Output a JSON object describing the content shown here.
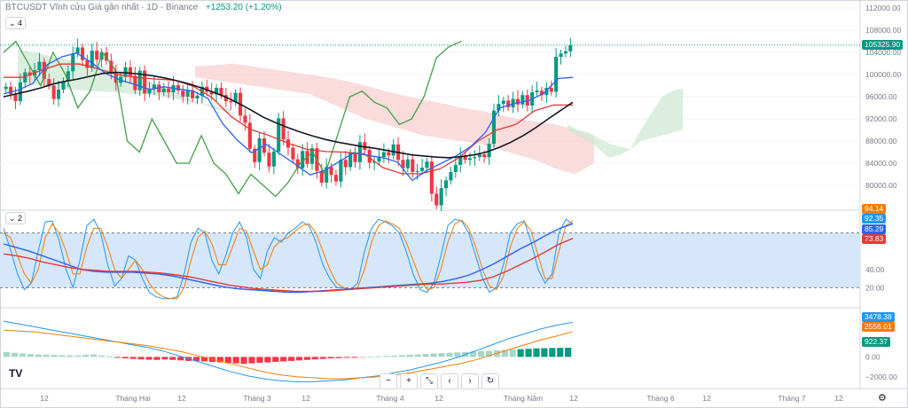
{
  "header": {
    "symbol": "BTCUSDT Vĩnh cửu Giá gần nhất · 1D · Binance",
    "change": "+1253.20 (+1.20%)"
  },
  "panes": {
    "main_tag": "4",
    "stoch_tag": "2"
  },
  "toolbar": {
    "zoom_out": "−",
    "zoom_in": "+",
    "reset": "⤡",
    "prev": "‹",
    "next": "›",
    "refresh": "↻"
  },
  "branding": {
    "logo": "TV"
  },
  "colors": {
    "up": "#089981",
    "down": "#f23645",
    "black_ma": "#131722",
    "blue_line": "#2962ff",
    "red_line": "#e53935",
    "green_lag": "#43a047",
    "cloud_up": "#cfe8d4",
    "cloud_down": "#f8d0d0",
    "stoch_k": "#2196f3",
    "stoch_d": "#f57c00",
    "band": "#d6e6fb",
    "macd_line": "#2196f3",
    "signal_line": "#f57c00"
  },
  "chart_data": [
    {
      "type": "candlestick",
      "name": "price",
      "y_ticks": [
        "112000.00",
        "108000.00",
        "104000.00",
        "100000.00",
        "96000.00",
        "92000.00",
        "88000.00",
        "84000.00",
        "80000.00"
      ],
      "ylim": [
        76000,
        112500
      ],
      "last_price": "105325.90",
      "x_labels": [
        "12",
        "Tháng Hai",
        "12",
        "Tháng 3",
        "12",
        "Tháng 4",
        "12",
        "Tháng Năm",
        "12",
        "Tháng 6",
        "12",
        "Tháng 7",
        "12"
      ],
      "candles_close": [
        97800,
        96500,
        95200,
        98600,
        100400,
        99800,
        100800,
        102300,
        99200,
        98000,
        95600,
        97300,
        98800,
        100600,
        103800,
        104900,
        102600,
        101200,
        104300,
        102700,
        104000,
        102500,
        100200,
        98500,
        99600,
        101300,
        99800,
        97200,
        100700,
        96600,
        97400,
        98200,
        96800,
        97500,
        96800,
        98100,
        97100,
        96000,
        97200,
        95700,
        96200,
        97800,
        96900,
        96400,
        97600,
        96300,
        95200,
        95000,
        96700,
        92600,
        91300,
        86600,
        84200,
        88500,
        85900,
        83400,
        86100,
        92100,
        88300,
        86800,
        84700,
        83100,
        86200,
        83900,
        86700,
        82600,
        80500,
        83300,
        81900,
        80700,
        84600,
        83300,
        85900,
        84200,
        87800,
        86400,
        84100,
        84300,
        85100,
        86000,
        85400,
        87400,
        84600,
        83100,
        84700,
        82400,
        82600,
        83200,
        84300,
        78500,
        76400,
        79500,
        80900,
        82400,
        83700,
        85300,
        84600,
        84900,
        85100,
        85600,
        85100,
        87500,
        93500,
        94700,
        95300,
        94100,
        95600,
        94600,
        96300,
        94400,
        96800,
        97100,
        96300,
        97600,
        96900,
        103200,
        103800,
        104200,
        105300
      ],
      "black_ma": [
        96000,
        96500,
        97000,
        97600,
        98300,
        98800,
        99200,
        99700,
        100200,
        100400,
        100300,
        100100,
        99800,
        99400,
        98900,
        98300,
        97600,
        96800,
        95900,
        94800,
        93600,
        92300,
        91300,
        90400,
        89600,
        88900,
        88300,
        87800,
        87400,
        87000,
        86700,
        86300,
        85900,
        85500,
        85300,
        85100,
        85000,
        85200,
        85500,
        86000,
        86800,
        87800,
        89000,
        90400,
        92000,
        93500,
        95000
      ],
      "blue_line": [
        96500,
        97200,
        98400,
        101800,
        103200,
        103900,
        102200,
        100200,
        99000,
        98200,
        97300,
        97800,
        97400,
        97000,
        95700,
        91200,
        88200,
        85900,
        87400,
        85600,
        83800,
        81900,
        82700,
        84300,
        85900,
        85400,
        85000,
        84200,
        80900,
        82700,
        84000,
        85300,
        87000,
        89500,
        94000,
        94800,
        95300,
        96600,
        99300,
        99500
      ],
      "red_line": [
        99500,
        99500,
        100800,
        101900,
        101900,
        101000,
        100000,
        99500,
        99200,
        99000,
        97900,
        95800,
        92400,
        90100,
        89000,
        87600,
        86500,
        86100,
        86000,
        85700,
        83200,
        82100,
        82100,
        83000,
        85000,
        88000,
        90000,
        91000,
        93500,
        94500,
        94500
      ],
      "green_lag": [
        104000,
        106000,
        102000,
        98000,
        104000,
        100000,
        94000,
        97000,
        104000,
        101000,
        88000,
        86000,
        92000,
        88000,
        84000,
        84000,
        89000,
        84000,
        82000,
        78500,
        82000,
        80000,
        78000,
        80500,
        84000,
        86000,
        82000,
        89000,
        96000,
        97000,
        95000,
        94000,
        91000,
        92000,
        96000,
        103000,
        105000,
        106000
      ],
      "cloud_green_top": [
        104500,
        104000,
        103000,
        102500,
        101500,
        101000,
        100000,
        98500,
        97000,
        95500,
        94000,
        93000,
        92000,
        91000,
        90000,
        89000,
        88000,
        86500,
        85000,
        85500,
        86500,
        90000,
        93000,
        96000,
        97000,
        97500
      ],
      "cloud_green_bottom": [
        98500,
        98000,
        97500,
        97200,
        97000,
        96800,
        96500,
        96300,
        95800,
        95000,
        94500,
        93800,
        93000,
        92000,
        91000,
        90000,
        89500,
        88500,
        87500,
        87000,
        86500,
        88000,
        88500,
        89000,
        89500,
        90000
      ],
      "cloud_red_top": [
        101500,
        101700,
        102000,
        101500,
        101000,
        100500,
        100000,
        99500,
        98800,
        98000,
        97000,
        96200,
        95500,
        94800,
        94000,
        93500,
        92800,
        92000,
        91500,
        91000,
        90000,
        89000
      ],
      "cloud_red_bottom": [
        99500,
        99000,
        98500,
        98000,
        97500,
        97000,
        96500,
        95000,
        93500,
        92000,
        91000,
        90000,
        89000,
        88500,
        88000,
        87500,
        86500,
        85500,
        84500,
        83000,
        82000,
        84000
      ]
    },
    {
      "type": "line",
      "name": "stochastic",
      "y_ticks": [
        "40.00",
        "20.00"
      ],
      "band": [
        20,
        80
      ],
      "ylim": [
        0,
        100
      ],
      "label_values": [
        "94.14",
        "92.35",
        "85.29",
        "73.83"
      ],
      "series": [
        {
          "values": [
            85,
            62,
            35,
            18,
            25,
            60,
            92,
            93,
            72,
            40,
            20,
            50,
            88,
            95,
            80,
            45,
            22,
            30,
            55,
            50,
            30,
            15,
            10,
            8,
            8,
            10,
            35,
            70,
            85,
            80,
            50,
            35,
            55,
            80,
            92,
            75,
            40,
            30,
            60,
            75,
            70,
            80,
            85,
            92,
            88,
            70,
            45,
            30,
            20,
            20,
            18,
            25,
            60,
            85,
            95,
            92,
            88,
            80,
            60,
            35,
            18,
            15,
            25,
            55,
            88,
            95,
            93,
            80,
            55,
            30,
            15,
            20,
            45,
            80,
            90,
            93,
            70,
            40,
            25,
            35,
            80,
            95,
            90
          ]
        },
        {
          "values": [
            80,
            75,
            55,
            35,
            25,
            40,
            75,
            90,
            80,
            60,
            35,
            35,
            65,
            85,
            85,
            65,
            40,
            30,
            40,
            50,
            40,
            25,
            15,
            10,
            8,
            8,
            20,
            50,
            75,
            82,
            68,
            45,
            45,
            65,
            85,
            82,
            60,
            40,
            45,
            65,
            72,
            75,
            82,
            88,
            90,
            80,
            60,
            40,
            25,
            20,
            18,
            20,
            40,
            70,
            88,
            93,
            90,
            85,
            70,
            50,
            30,
            18,
            20,
            40,
            70,
            90,
            94,
            85,
            65,
            40,
            22,
            18,
            32,
            65,
            85,
            92,
            82,
            55,
            30,
            30,
            60,
            88,
            93
          ]
        },
        {
          "values": [
            68,
            64,
            60,
            55,
            50,
            45,
            40,
            38,
            37,
            37,
            37,
            36,
            35,
            33,
            30,
            27,
            24,
            21,
            19,
            18,
            17,
            16,
            15,
            15,
            16,
            17,
            18,
            19,
            20,
            21,
            22,
            23,
            24,
            25,
            27,
            30,
            34,
            40,
            47,
            55,
            63,
            70,
            78,
            85,
            90
          ]
        },
        {
          "values": [
            57,
            55,
            52,
            48,
            45,
            42,
            40,
            39,
            38,
            38,
            38,
            37,
            36,
            34,
            32,
            29,
            26,
            23,
            21,
            19,
            18,
            17,
            16,
            16,
            16,
            17,
            18,
            19,
            20,
            21,
            22,
            23,
            24,
            24,
            25,
            26,
            28,
            32,
            38,
            45,
            52,
            60,
            68,
            74
          ]
        }
      ]
    },
    {
      "type": "bar",
      "name": "macd",
      "y_ticks": [
        "0.00",
        "−2000.00"
      ],
      "ylim": [
        -3000,
        4500
      ],
      "label_values": [
        "3478.38",
        "2556.01",
        "922.37"
      ],
      "series": [
        {
          "values": [
            3600,
            3300,
            3000,
            2700,
            2400,
            2100,
            1800,
            1500,
            1200,
            900,
            500,
            0,
            -500,
            -1000,
            -1500,
            -1900,
            -2200,
            -2400,
            -2500,
            -2500,
            -2400,
            -2300,
            -2100,
            -1900,
            -1600,
            -1300,
            -900,
            -500,
            0,
            600,
            1200,
            1800,
            2300,
            2800,
            3200,
            3478
          ]
        },
        {
          "values": [
            2700,
            2600,
            2500,
            2300,
            2100,
            1900,
            1700,
            1500,
            1300,
            1100,
            800,
            500,
            100,
            -300,
            -700,
            -1100,
            -1500,
            -1800,
            -2000,
            -2100,
            -2200,
            -2200,
            -2100,
            -2000,
            -1800,
            -1600,
            -1300,
            -1000,
            -700,
            -300,
            200,
            700,
            1200,
            1700,
            2100,
            2556
          ]
        },
        {
          "values": [
            500,
            420,
            350,
            280,
            250,
            230,
            200,
            180,
            160,
            150,
            200,
            250,
            150,
            50,
            -50,
            -150,
            -200,
            -250,
            -280,
            -300,
            -250,
            -300,
            -350,
            -400,
            -420,
            -450,
            -500,
            -550,
            -600,
            -650,
            -700,
            -650,
            -600,
            -550,
            -500,
            -450,
            -400,
            -350,
            -300,
            -250,
            -200,
            -150,
            -120,
            -80,
            -50,
            -20,
            20,
            60,
            100,
            140,
            180,
            220,
            260,
            300,
            340,
            380,
            420,
            460,
            500,
            540,
            580,
            620,
            660,
            700,
            740,
            780,
            820,
            860,
            880,
            900,
            910,
            922
          ]
        }
      ]
    }
  ]
}
